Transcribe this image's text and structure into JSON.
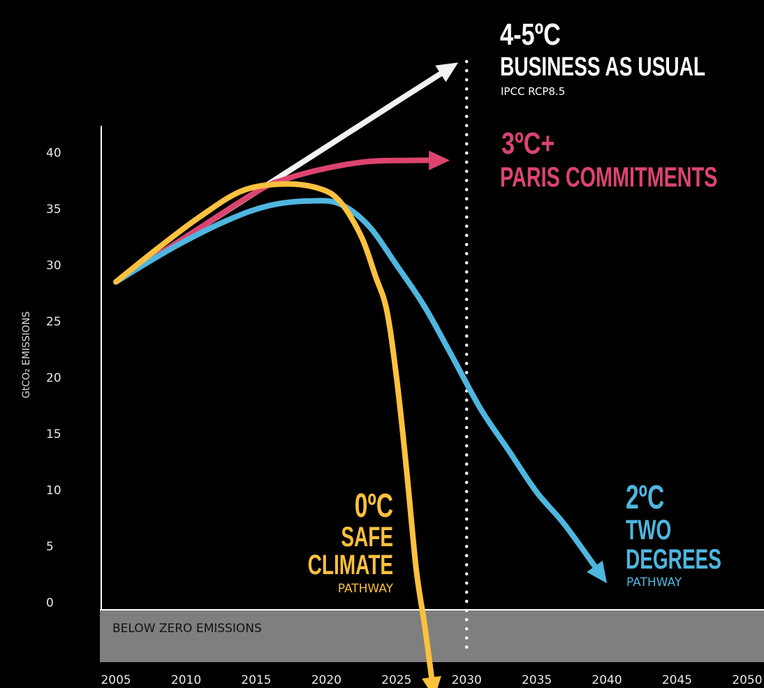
{
  "chart_data": {
    "type": "line",
    "xlabel": "",
    "ylabel": "GtCO₂ EMISSIONS",
    "x_ticks": [
      2005,
      2010,
      2015,
      2020,
      2025,
      2030,
      2035,
      2040,
      2045,
      2050
    ],
    "y_ticks": [
      0,
      5,
      10,
      15,
      20,
      25,
      30,
      35,
      40
    ],
    "xlim": [
      2004,
      2051
    ],
    "ylim": [
      -4.5,
      43
    ],
    "grid": false,
    "legend": "none",
    "below_zero_label": "BELOW ZERO EMISSIONS",
    "marker_year": 2030,
    "series": [
      {
        "key": "bau",
        "color": "#f2f2f2",
        "heading": "4-5ºC",
        "subtitle": "BUSINESS AS USUAL",
        "note": "IPCC RCP8.5",
        "points": [
          [
            2005,
            28.5
          ],
          [
            2010,
            32.5
          ],
          [
            2015,
            36.5
          ],
          [
            2020,
            40.5
          ],
          [
            2025,
            44.5
          ],
          [
            2029.4,
            48
          ]
        ]
      },
      {
        "key": "paris",
        "color": "#dc4470",
        "heading": "3ºC+",
        "subtitle": "PARIS COMMITMENTS",
        "note": "",
        "points": [
          [
            2005,
            28.5
          ],
          [
            2010,
            32.5
          ],
          [
            2015,
            36.5
          ],
          [
            2017,
            37.6
          ],
          [
            2020,
            38.6
          ],
          [
            2023,
            39.2
          ],
          [
            2026,
            39.3
          ],
          [
            2028.8,
            39.3
          ]
        ]
      },
      {
        "key": "safe",
        "color": "#fec13e",
        "heading": "0ºC",
        "subtitle_lines": [
          "SAFE",
          "CLIMATE"
        ],
        "note": "PATHWAY",
        "points": [
          [
            2005,
            28.5
          ],
          [
            2008,
            31.5
          ],
          [
            2011,
            34.3
          ],
          [
            2014,
            36.6
          ],
          [
            2017,
            37.2
          ],
          [
            2019.5,
            36.8
          ],
          [
            2021,
            35.6
          ],
          [
            2022.5,
            32.5
          ],
          [
            2023.5,
            29
          ],
          [
            2024.3,
            26
          ],
          [
            2025,
            20
          ],
          [
            2025.7,
            12
          ],
          [
            2026.4,
            3
          ],
          [
            2027,
            -2
          ],
          [
            2027.7,
            -8.5
          ]
        ]
      },
      {
        "key": "two",
        "color": "#4fb6df",
        "heading": "2ºC",
        "subtitle_lines": [
          "TWO",
          "DEGREES"
        ],
        "note": "PATHWAY",
        "points": [
          [
            2005,
            28.5
          ],
          [
            2009,
            31.5
          ],
          [
            2013,
            34
          ],
          [
            2016,
            35.3
          ],
          [
            2019,
            35.7
          ],
          [
            2021,
            35.4
          ],
          [
            2023,
            33.5
          ],
          [
            2025,
            30
          ],
          [
            2027,
            26.3
          ],
          [
            2029,
            21.8
          ],
          [
            2031,
            17.2
          ],
          [
            2033,
            13.5
          ],
          [
            2035,
            9.8
          ],
          [
            2037,
            6.9
          ],
          [
            2040,
            1.7
          ]
        ]
      }
    ]
  }
}
